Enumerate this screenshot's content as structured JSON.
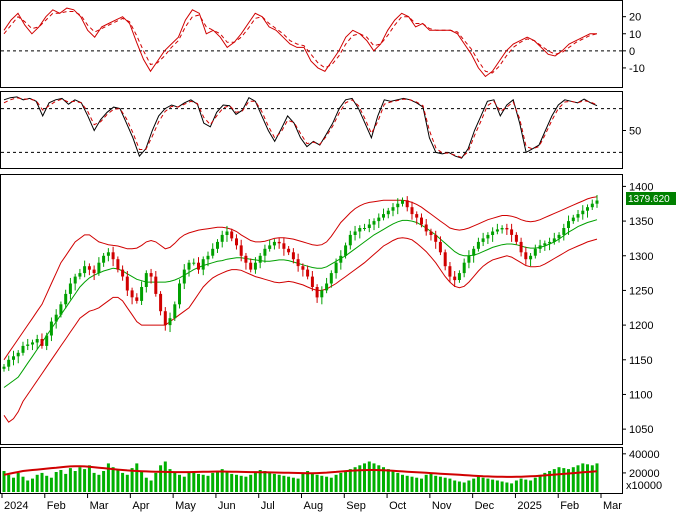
{
  "chart_data": {
    "type": "candlestick",
    "x_months": [
      "2024",
      "Feb",
      "Mar",
      "Apr",
      "May",
      "Jun",
      "Jul",
      "Aug",
      "Sep",
      "Oct",
      "Nov",
      "Dec",
      "2025",
      "Feb",
      "Mar"
    ],
    "last_price_label": "1379.620",
    "colors": {
      "up": "#00a000",
      "down": "#d00000",
      "signal": "#d00000",
      "ma": "#00a000",
      "band": "#d00000",
      "volume": "#00b000",
      "volume_ma": "#d00000",
      "price_tag": "#008000"
    },
    "panels": [
      {
        "name": "oscillator",
        "y_ticks": [
          "20",
          "10",
          "0",
          "-10"
        ],
        "y_tick_values": [
          20,
          10,
          0,
          -10
        ],
        "ylim": [
          -20,
          28
        ],
        "dashed_levels": [
          0
        ],
        "main_series": [
          12,
          18,
          22,
          15,
          10,
          14,
          20,
          24,
          22,
          25,
          24,
          20,
          12,
          8,
          14,
          16,
          18,
          20,
          16,
          5,
          -5,
          -12,
          -6,
          0,
          4,
          8,
          18,
          24,
          22,
          10,
          12,
          8,
          2,
          5,
          10,
          16,
          22,
          20,
          14,
          12,
          8,
          4,
          2,
          2,
          -6,
          -10,
          -12,
          -6,
          0,
          8,
          12,
          10,
          6,
          0,
          4,
          12,
          18,
          22,
          20,
          14,
          16,
          12,
          12,
          12,
          12,
          10,
          4,
          -2,
          -10,
          -15,
          -12,
          -6,
          0,
          4,
          6,
          8,
          6,
          2,
          -2,
          -3,
          0,
          4,
          6,
          8,
          10,
          10
        ],
        "signal_series": [
          10,
          15,
          20,
          17,
          13,
          14,
          18,
          22,
          22,
          23,
          23,
          21,
          15,
          11,
          13,
          15,
          17,
          19,
          17,
          9,
          0,
          -8,
          -7,
          -3,
          2,
          6,
          14,
          20,
          21,
          14,
          12,
          10,
          5,
          5,
          8,
          13,
          19,
          20,
          16,
          13,
          10,
          6,
          4,
          3,
          -2,
          -7,
          -10,
          -8,
          -3,
          4,
          9,
          10,
          8,
          3,
          4,
          9,
          15,
          20,
          20,
          16,
          16,
          13,
          12,
          12,
          12,
          11,
          6,
          1,
          -6,
          -12,
          -13,
          -9,
          -3,
          2,
          5,
          7,
          6,
          3,
          0,
          -2,
          -1,
          2,
          5,
          7,
          9,
          10
        ]
      },
      {
        "name": "stochastic",
        "y_ticks": [
          "50"
        ],
        "y_tick_values": [
          50
        ],
        "ylim": [
          0,
          100
        ],
        "dashed_levels": [
          80,
          20
        ],
        "main_series": [
          92,
          95,
          96,
          92,
          94,
          90,
          70,
          88,
          92,
          94,
          86,
          92,
          88,
          70,
          50,
          65,
          75,
          82,
          80,
          60,
          40,
          15,
          25,
          50,
          70,
          80,
          85,
          82,
          88,
          92,
          86,
          60,
          55,
          75,
          85,
          84,
          72,
          78,
          95,
          90,
          70,
          50,
          35,
          52,
          70,
          60,
          40,
          28,
          35,
          30,
          45,
          60,
          80,
          92,
          94,
          80,
          60,
          40,
          70,
          92,
          90,
          92,
          94,
          92,
          88,
          82,
          40,
          20,
          18,
          20,
          15,
          12,
          25,
          50,
          70,
          90,
          92,
          70,
          85,
          92,
          60,
          20,
          25,
          30,
          50,
          70,
          85,
          92,
          90,
          88,
          93,
          88,
          84
        ],
        "signal_series": [
          88,
          92,
          95,
          93,
          93,
          91,
          78,
          84,
          90,
          93,
          89,
          90,
          88,
          76,
          58,
          62,
          72,
          79,
          80,
          66,
          47,
          24,
          24,
          42,
          62,
          76,
          83,
          82,
          86,
          90,
          87,
          68,
          58,
          70,
          81,
          84,
          75,
          77,
          90,
          90,
          76,
          56,
          40,
          48,
          64,
          61,
          46,
          32,
          34,
          31,
          42,
          56,
          74,
          88,
          92,
          84,
          66,
          46,
          62,
          86,
          89,
          91,
          93,
          92,
          89,
          84,
          50,
          26,
          19,
          19,
          16,
          13,
          21,
          43,
          63,
          84,
          90,
          76,
          82,
          89,
          66,
          28,
          25,
          28,
          45,
          64,
          80,
          89,
          90,
          88,
          91,
          89,
          85
        ]
      }
    ],
    "price_panel": {
      "y_ticks": [
        "1400",
        "1350",
        "1300",
        "1250",
        "1200",
        "1150",
        "1100",
        "1050"
      ],
      "y_tick_values": [
        1400,
        1350,
        1300,
        1250,
        1200,
        1150,
        1100,
        1050
      ],
      "ylim": [
        1030,
        1415
      ],
      "close": [
        1140,
        1150,
        1155,
        1160,
        1170,
        1172,
        1175,
        1180,
        1170,
        1185,
        1205,
        1215,
        1230,
        1245,
        1260,
        1270,
        1275,
        1285,
        1280,
        1275,
        1290,
        1300,
        1305,
        1295,
        1280,
        1270,
        1250,
        1240,
        1235,
        1255,
        1275,
        1270,
        1245,
        1220,
        1200,
        1210,
        1230,
        1260,
        1280,
        1290,
        1290,
        1280,
        1295,
        1300,
        1310,
        1320,
        1330,
        1335,
        1325,
        1315,
        1300,
        1290,
        1280,
        1290,
        1300,
        1310,
        1315,
        1320,
        1318,
        1310,
        1305,
        1295,
        1285,
        1280,
        1270,
        1255,
        1240,
        1250,
        1260,
        1275,
        1290,
        1300,
        1315,
        1330,
        1335,
        1340,
        1340,
        1345,
        1350,
        1355,
        1360,
        1365,
        1370,
        1375,
        1380,
        1370,
        1360,
        1355,
        1345,
        1335,
        1330,
        1320,
        1305,
        1285,
        1270,
        1265,
        1275,
        1290,
        1300,
        1310,
        1320,
        1325,
        1330,
        1335,
        1338,
        1340,
        1338,
        1330,
        1320,
        1305,
        1295,
        1300,
        1310,
        1315,
        1318,
        1320,
        1325,
        1330,
        1340,
        1350,
        1355,
        1360,
        1365,
        1370,
        1375,
        1379.62
      ],
      "ma": [
        1110,
        1115,
        1120,
        1125,
        1135,
        1145,
        1155,
        1165,
        1175,
        1185,
        1195,
        1205,
        1215,
        1225,
        1235,
        1245,
        1255,
        1262,
        1268,
        1272,
        1275,
        1278,
        1280,
        1282,
        1281,
        1278,
        1274,
        1270,
        1266,
        1264,
        1262,
        1262,
        1262,
        1262,
        1262,
        1263,
        1265,
        1268,
        1272,
        1276,
        1280,
        1283,
        1286,
        1288,
        1290,
        1292,
        1293,
        1295,
        1296,
        1297,
        1297,
        1296,
        1295,
        1294,
        1293,
        1292,
        1292,
        1293,
        1294,
        1294,
        1293,
        1291,
        1289,
        1287,
        1285,
        1283,
        1282,
        1282,
        1284,
        1288,
        1292,
        1296,
        1300,
        1305,
        1310,
        1315,
        1320,
        1325,
        1330,
        1334,
        1338,
        1342,
        1346,
        1349,
        1351,
        1351,
        1350,
        1348,
        1344,
        1340,
        1335,
        1330,
        1324,
        1318,
        1312,
        1306,
        1302,
        1300,
        1300,
        1301,
        1303,
        1306,
        1309,
        1312,
        1314,
        1316,
        1317,
        1317,
        1316,
        1314,
        1312,
        1311,
        1311,
        1312,
        1314,
        1317,
        1320,
        1324,
        1329,
        1334,
        1338,
        1342,
        1345,
        1348,
        1350,
        1352
      ],
      "upper_band": [
        1150,
        1160,
        1170,
        1180,
        1190,
        1200,
        1210,
        1220,
        1230,
        1245,
        1260,
        1275,
        1290,
        1300,
        1310,
        1320,
        1325,
        1330,
        1330,
        1325,
        1320,
        1318,
        1316,
        1315,
        1314,
        1312,
        1310,
        1310,
        1311,
        1315,
        1320,
        1322,
        1320,
        1315,
        1310,
        1312,
        1318,
        1325,
        1330,
        1333,
        1335,
        1337,
        1338,
        1339,
        1340,
        1341,
        1341,
        1340,
        1338,
        1335,
        1330,
        1326,
        1322,
        1320,
        1320,
        1321,
        1323,
        1325,
        1326,
        1326,
        1325,
        1324,
        1322,
        1320,
        1318,
        1316,
        1315,
        1316,
        1320,
        1328,
        1338,
        1348,
        1355,
        1362,
        1368,
        1372,
        1375,
        1377,
        1378,
        1379,
        1380,
        1380,
        1380,
        1380,
        1380,
        1379,
        1377,
        1374,
        1370,
        1365,
        1360,
        1355,
        1350,
        1345,
        1340,
        1338,
        1337,
        1338,
        1340,
        1343,
        1346,
        1349,
        1352,
        1354,
        1356,
        1358,
        1358,
        1357,
        1355,
        1352,
        1350,
        1349,
        1350,
        1352,
        1355,
        1358,
        1361,
        1364,
        1367,
        1370,
        1373,
        1376,
        1379,
        1382,
        1384,
        1385
      ],
      "lower_band": [
        1070,
        1060,
        1065,
        1075,
        1090,
        1100,
        1110,
        1120,
        1130,
        1140,
        1150,
        1160,
        1170,
        1180,
        1190,
        1200,
        1210,
        1215,
        1220,
        1222,
        1225,
        1230,
        1235,
        1240,
        1240,
        1235,
        1225,
        1215,
        1205,
        1200,
        1200,
        1200,
        1200,
        1200,
        1200,
        1205,
        1210,
        1215,
        1220,
        1225,
        1235,
        1245,
        1255,
        1262,
        1268,
        1272,
        1275,
        1278,
        1280,
        1280,
        1279,
        1276,
        1273,
        1270,
        1268,
        1266,
        1264,
        1262,
        1261,
        1262,
        1263,
        1262,
        1260,
        1258,
        1255,
        1252,
        1250,
        1250,
        1252,
        1256,
        1260,
        1265,
        1270,
        1275,
        1280,
        1285,
        1290,
        1296,
        1302,
        1308,
        1314,
        1318,
        1322,
        1325,
        1326,
        1325,
        1323,
        1318,
        1312,
        1306,
        1298,
        1290,
        1280,
        1270,
        1262,
        1256,
        1254,
        1256,
        1262,
        1270,
        1278,
        1285,
        1290,
        1294,
        1296,
        1298,
        1300,
        1298,
        1294,
        1290,
        1286,
        1284,
        1284,
        1285,
        1288,
        1292,
        1296,
        1300,
        1304,
        1308,
        1311,
        1314,
        1317,
        1320,
        1322,
        1324
      ]
    },
    "volume_panel": {
      "y_ticks": [
        "40000",
        "20000"
      ],
      "y_tick_values": [
        40000,
        20000
      ],
      "ylim": [
        0,
        44000
      ],
      "unit_label": "x10000",
      "volume": [
        22000,
        18000,
        15000,
        20000,
        16000,
        12000,
        14000,
        18000,
        20000,
        17000,
        15000,
        21000,
        23000,
        19000,
        25000,
        22000,
        26000,
        24000,
        28000,
        20000,
        18000,
        22000,
        30000,
        26000,
        24000,
        20000,
        18000,
        25000,
        30000,
        22000,
        15000,
        12000,
        20000,
        28000,
        32000,
        24000,
        20000,
        18000,
        16000,
        21000,
        22000,
        19000,
        18000,
        17000,
        20000,
        22000,
        24000,
        21000,
        19000,
        18000,
        17000,
        16000,
        18000,
        21000,
        23000,
        22000,
        20000,
        19000,
        18000,
        17000,
        16000,
        15000,
        14000,
        20000,
        22000,
        19000,
        18000,
        17000,
        16000,
        15000,
        18000,
        20000,
        22000,
        24000,
        26000,
        28000,
        30000,
        32000,
        30000,
        28000,
        26000,
        24000,
        22000,
        20000,
        18000,
        17000,
        16000,
        15000,
        14000,
        18000,
        20000,
        17000,
        16000,
        15000,
        14000,
        12000,
        11000,
        10000,
        12000,
        14000,
        16000,
        15000,
        14000,
        13000,
        12000,
        11000,
        10000,
        9000,
        12000,
        14000,
        13000,
        12000,
        15000,
        18000,
        20000,
        22000,
        24000,
        26000,
        25000,
        24000,
        26000,
        28000,
        30000,
        29000,
        28000,
        30000
      ],
      "volume_ma": [
        18000,
        19000,
        20000,
        21000,
        22000,
        22500,
        23000,
        23500,
        24000,
        24500,
        25000,
        25500,
        26000,
        26500,
        26800,
        27000,
        27000,
        26800,
        26500,
        26000,
        25500,
        25000,
        24500,
        24000,
        23500,
        23000,
        22600,
        22300,
        22000,
        21800,
        21600,
        21400,
        21300,
        21200,
        21100,
        21000,
        20900,
        20800,
        20800,
        20900,
        21000,
        21100,
        21200,
        21300,
        21400,
        21500,
        21500,
        21400,
        21300,
        21200,
        21100,
        21000,
        20900,
        20800,
        20700,
        20600,
        20500,
        20400,
        20300,
        20200,
        20100,
        20000,
        19900,
        19800,
        19700,
        19700,
        19800,
        20000,
        20300,
        20700,
        21100,
        21500,
        21900,
        22200,
        22500,
        22700,
        22900,
        23000,
        23000,
        22900,
        22700,
        22500,
        22200,
        21900,
        21600,
        21300,
        21000,
        20700,
        20400,
        20100,
        19800,
        19500,
        19200,
        18900,
        18600,
        18300,
        18000,
        17700,
        17400,
        17100,
        16800,
        16500,
        16300,
        16100,
        16000,
        15900,
        15800,
        15800,
        15900,
        16000,
        16200,
        16400,
        16700,
        17000,
        17400,
        17800,
        18200,
        18600,
        19000,
        19400,
        19800,
        20200,
        20600,
        21000,
        21400,
        21800
      ]
    }
  }
}
